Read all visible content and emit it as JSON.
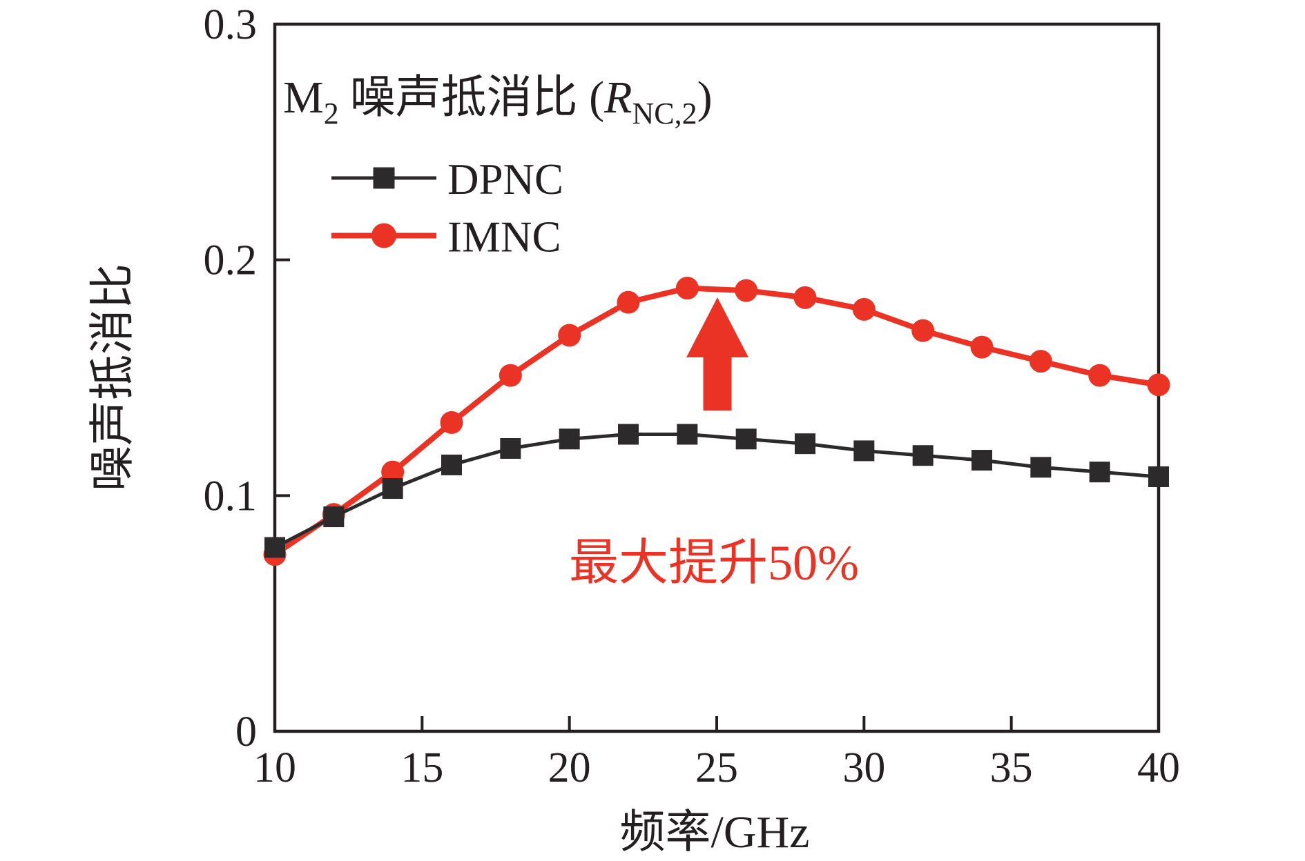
{
  "figure": {
    "background": "#ffffff",
    "frame_color": "#231f20",
    "text_color": "#231f20",
    "accent_red": "#ea3324"
  },
  "legend_title": {
    "prefix": "M",
    "prefix_sub": "2",
    "body": "噪声抵消比 (",
    "symbol": "R",
    "symbol_sub": "NC,2",
    "suffix": ")"
  },
  "chart_data": {
    "type": "line",
    "title": "M2 噪声抵消比 (R_NC,2)",
    "xlabel": "频率/GHz",
    "ylabel": "噪声抵消比",
    "xlim": [
      10,
      40
    ],
    "ylim": [
      0,
      0.3
    ],
    "x_ticks": [
      10,
      15,
      20,
      25,
      30,
      35,
      40
    ],
    "x_tick_labels": [
      "10",
      "15",
      "20",
      "25",
      "30",
      "35",
      "40"
    ],
    "y_ticks": [
      0,
      0.1,
      0.2,
      0.3
    ],
    "y_tick_labels": [
      "0",
      "0.1",
      "0.2",
      "0.3"
    ],
    "grid": false,
    "legend_position": "inside-top-left",
    "x": [
      10,
      12,
      14,
      16,
      18,
      20,
      22,
      24,
      26,
      28,
      30,
      32,
      34,
      36,
      38,
      40
    ],
    "series": [
      {
        "name": "DPNC",
        "color": "#2d2a2b",
        "marker": "square",
        "line_width": 5,
        "values": [
          0.078,
          0.091,
          0.103,
          0.113,
          0.12,
          0.124,
          0.126,
          0.126,
          0.124,
          0.122,
          0.119,
          0.117,
          0.115,
          0.112,
          0.11,
          0.108
        ]
      },
      {
        "name": "IMNC",
        "color": "#ea3324",
        "marker": "circle",
        "line_width": 8,
        "values": [
          0.075,
          0.092,
          0.11,
          0.131,
          0.151,
          0.168,
          0.182,
          0.188,
          0.187,
          0.184,
          0.179,
          0.17,
          0.163,
          0.157,
          0.151,
          0.147
        ]
      }
    ],
    "annotations": [
      {
        "type": "text",
        "text": "最大提升50%",
        "x_ghz": 25,
        "y_value": 0.07,
        "color": "#ea3324"
      },
      {
        "type": "arrow-up",
        "x_ghz": 25,
        "y_from": 0.136,
        "y_to": 0.184,
        "color": "#ea3324"
      }
    ]
  }
}
